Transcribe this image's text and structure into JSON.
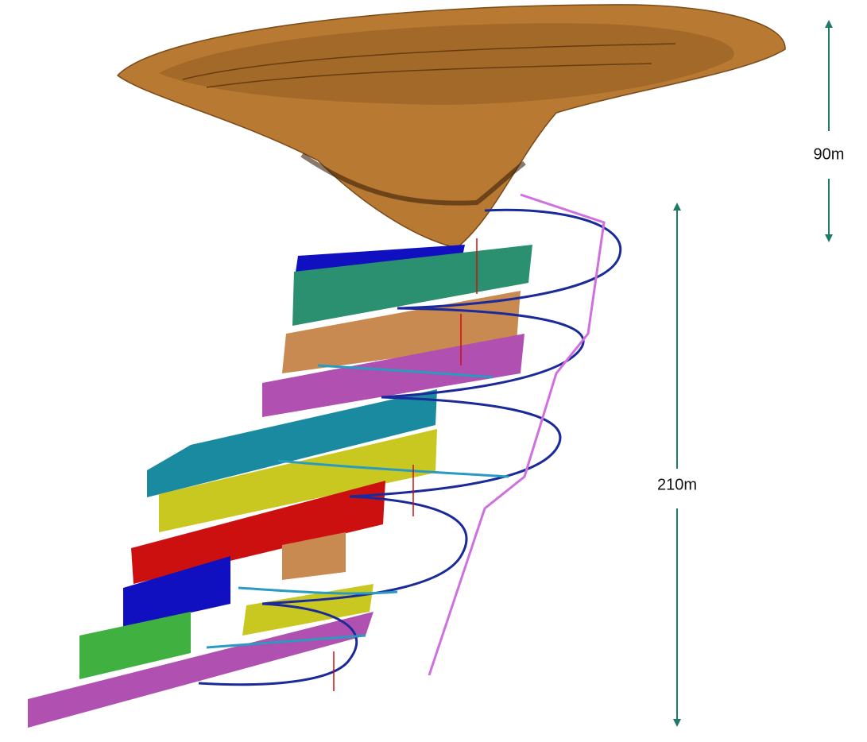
{
  "dimension_labels": [
    "90m",
    "210m"
  ]
}
